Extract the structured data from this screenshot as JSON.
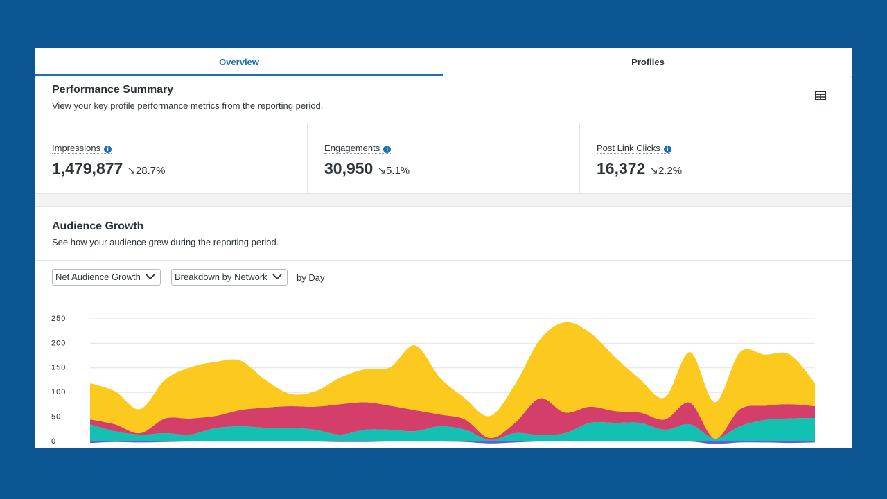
{
  "tabs": [
    "Overview",
    "Profiles"
  ],
  "performance_summary": {
    "title": "Performance Summary",
    "subtitle": "View your key profile performance metrics from the reporting period.",
    "metrics": [
      {
        "label": "Impressions",
        "value": "1,479,877",
        "change": "28.7%"
      },
      {
        "label": "Engagements",
        "value": "30,950",
        "change": "5.1%"
      },
      {
        "label": "Post Link Clicks",
        "value": "16,372",
        "change": "2.2%"
      }
    ]
  },
  "audience_growth": {
    "title": "Audience Growth",
    "subtitle": "See how your audience grew during the reporting period.",
    "controls": [
      "Net Audience Growth",
      "Breakdown by Network"
    ],
    "controls_suffix": "by Day"
  },
  "chart_data": {
    "type": "stacked_area",
    "categories": [
      null,
      null,
      null,
      null,
      null,
      null,
      null,
      null,
      null,
      null,
      null,
      null,
      null,
      null,
      null,
      null,
      null,
      null,
      null,
      null,
      null,
      null,
      null,
      null,
      null,
      null,
      null,
      null,
      null,
      null
    ],
    "series": [
      {
        "color": "#6b5bd2",
        "values": [
          -3,
          -1,
          -2,
          -1,
          0,
          0,
          0,
          0,
          0,
          0,
          -1,
          -1,
          0,
          0,
          0,
          -1,
          -4,
          -2,
          0,
          0,
          0,
          0,
          0,
          0,
          0,
          -5,
          -2,
          -2,
          -3,
          -2
        ]
      },
      {
        "color": "#13c1b2",
        "values": [
          35,
          21,
          14,
          17,
          14,
          27,
          31,
          28,
          28,
          24,
          14,
          24,
          24,
          21,
          31,
          24,
          3,
          17,
          13,
          17,
          38,
          38,
          38,
          24,
          35,
          6,
          31,
          44,
          47,
          48
        ]
      },
      {
        "color": "#d33f6a",
        "values": [
          10,
          14,
          3,
          30,
          33,
          25,
          33,
          41,
          44,
          47,
          62,
          56,
          49,
          43,
          24,
          21,
          4,
          21,
          75,
          42,
          33,
          24,
          21,
          21,
          44,
          0,
          35,
          29,
          29,
          24
        ]
      },
      {
        "color": "#fcca1f",
        "values": [
          74,
          67,
          49,
          79,
          104,
          110,
          101,
          57,
          25,
          31,
          54,
          67,
          78,
          132,
          75,
          43,
          45,
          78,
          120,
          184,
          151,
          110,
          68,
          45,
          103,
          74,
          116,
          104,
          101,
          47
        ]
      }
    ],
    "ylim": [
      0,
      250
    ],
    "yticks": [
      0,
      50,
      100,
      150,
      200,
      250
    ],
    "grid": true
  }
}
